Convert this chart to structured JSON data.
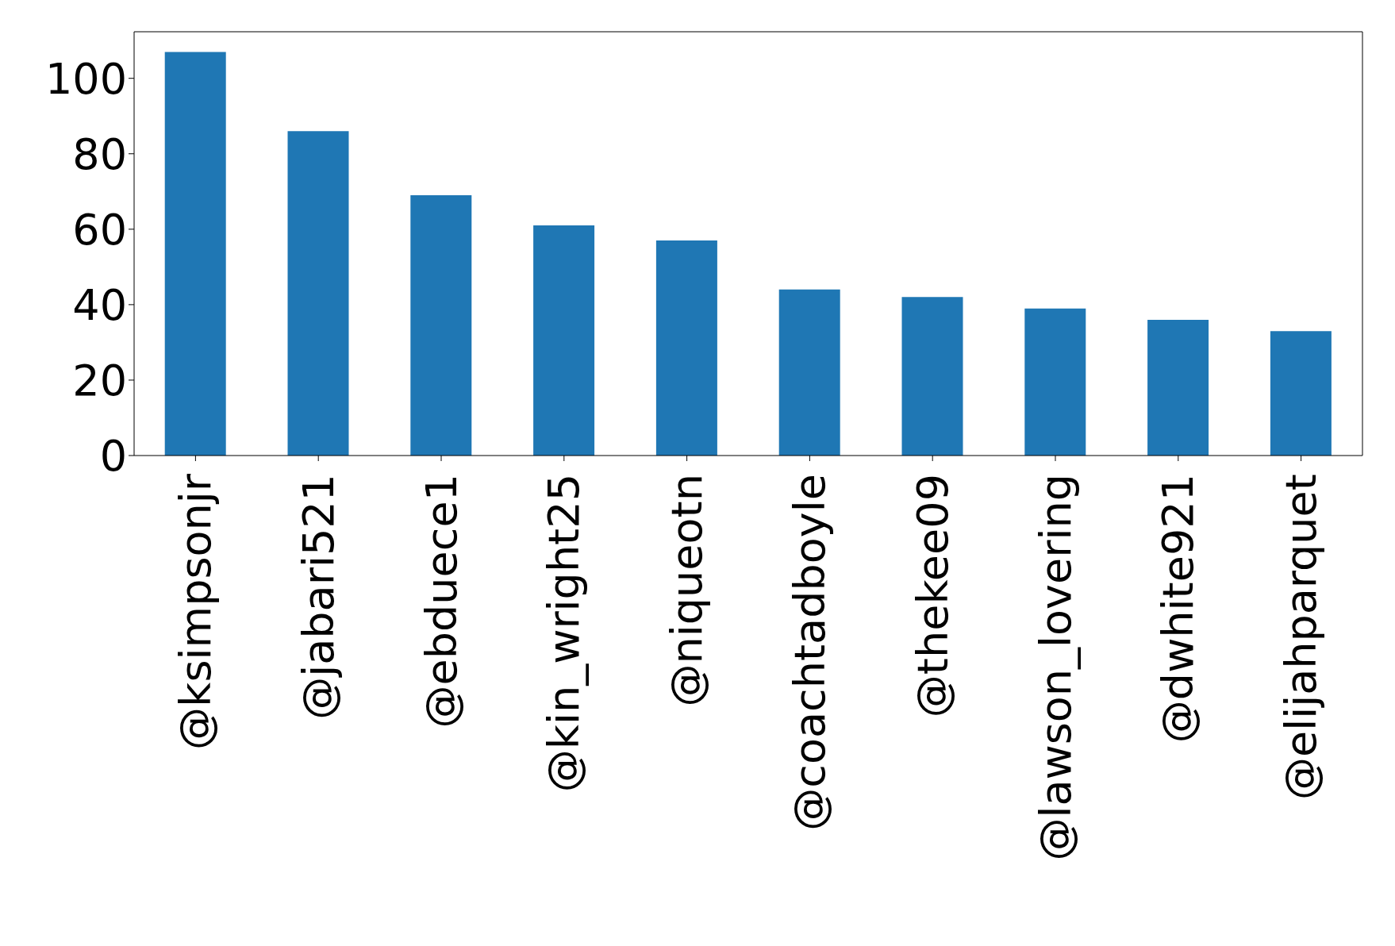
{
  "chart_data": {
    "type": "bar",
    "categories": [
      "@ksimpsonjr",
      "@jabari521",
      "@ebduece1",
      "@kin_wright25",
      "@niqueotn",
      "@coachtadboyle",
      "@thekee09",
      "@lawson_lovering",
      "@dwhite921",
      "@elijahparquet"
    ],
    "values": [
      107,
      86,
      69,
      61,
      57,
      44,
      42,
      39,
      36,
      33
    ],
    "color": "#1f77b4",
    "ylim": [
      0,
      112.35
    ],
    "yticks": [
      0,
      20,
      40,
      60,
      80,
      100
    ],
    "grid": false,
    "legend": false
  }
}
